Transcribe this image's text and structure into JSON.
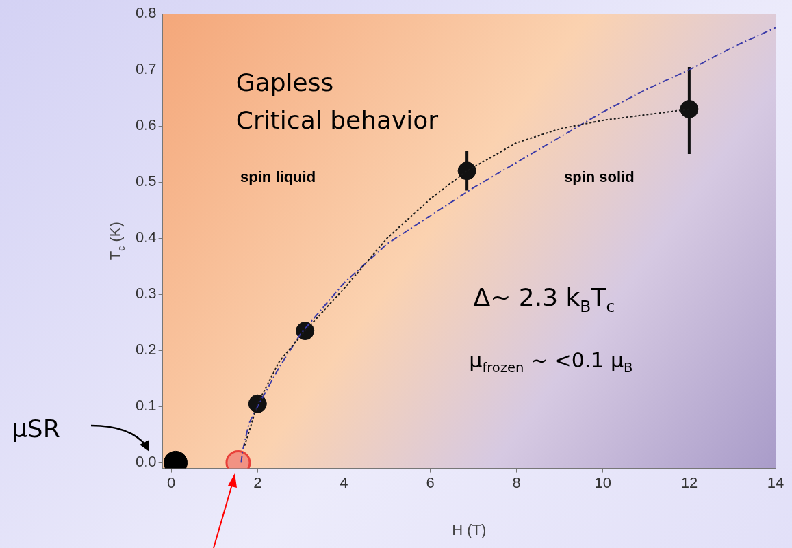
{
  "chart_data": {
    "type": "line",
    "xlabel": "H (T)",
    "ylabel": "T$_{c}$ (K)",
    "xlim": [
      -0.2,
      14
    ],
    "xticks": [
      0,
      2,
      4,
      6,
      8,
      10,
      12,
      14
    ],
    "ylim": [
      -0.01,
      0.8
    ],
    "yticks": [
      {
        "value": 0,
        "label": "0.0"
      },
      {
        "value": 0.1,
        "label": "0.1"
      },
      {
        "value": 0.2,
        "label": "0.2"
      },
      {
        "value": 0.3,
        "label": "0.3"
      },
      {
        "value": 0.4,
        "label": "0.4"
      },
      {
        "value": 0.5,
        "label": "0.5"
      },
      {
        "value": 0.6,
        "label": "0.6"
      },
      {
        "value": 0.7,
        "label": "0.7"
      },
      {
        "value": 0.8,
        "label": "0.8"
      }
    ],
    "grid": false,
    "legend": false,
    "series": [
      {
        "type": "line",
        "color": "#1a1a1a",
        "line_style": "dotted",
        "marker": "none",
        "x": [
          1.7,
          2,
          2.5,
          3.1,
          4,
          5,
          6,
          6.85,
          8,
          9,
          10,
          11,
          12
        ],
        "values": [
          0.03,
          0.105,
          0.18,
          0.235,
          0.31,
          0.4,
          0.47,
          0.52,
          0.57,
          0.595,
          0.61,
          0.62,
          0.63
        ]
      },
      {
        "type": "line",
        "color": "#3a3aa8",
        "line_style": "dashed",
        "marker": "none",
        "x": [
          1.62,
          1.65,
          1.8,
          2,
          2.5,
          3,
          4,
          5,
          6,
          7,
          8,
          9,
          10,
          11,
          12,
          13,
          14
        ],
        "values": [
          0,
          0.02,
          0.07,
          0.1,
          0.17,
          0.23,
          0.32,
          0.39,
          0.44,
          0.49,
          0.535,
          0.58,
          0.625,
          0.665,
          0.7,
          0.74,
          0.775
        ]
      },
      {
        "type": "scatter",
        "color": "#111111",
        "marker": "circle",
        "x": [
          2,
          3.1,
          6.85,
          12
        ],
        "values": [
          0.105,
          0.235,
          0.52,
          0.63
        ],
        "errors": [
          null,
          null,
          [
            0.485,
            0.555
          ],
          [
            0.55,
            0.705
          ]
        ]
      },
      {
        "type": "scatter",
        "color": "#000000",
        "marker": "circle",
        "x": [
          0.1
        ],
        "values": [
          0
        ]
      },
      {
        "type": "scatter",
        "color": "#e8403a",
        "marker": "circle",
        "x": [
          1.55
        ],
        "values": [
          0
        ]
      }
    ],
    "annotations": [
      "Gapless",
      "Critical behavior",
      "spin liquid",
      "spin solid",
      "Δ~ 2.3 k$_{B}$T$_{c}$",
      "μ$_{frozen}$ ~ <0.1 μ$_{B}$",
      "μSR"
    ]
  }
}
